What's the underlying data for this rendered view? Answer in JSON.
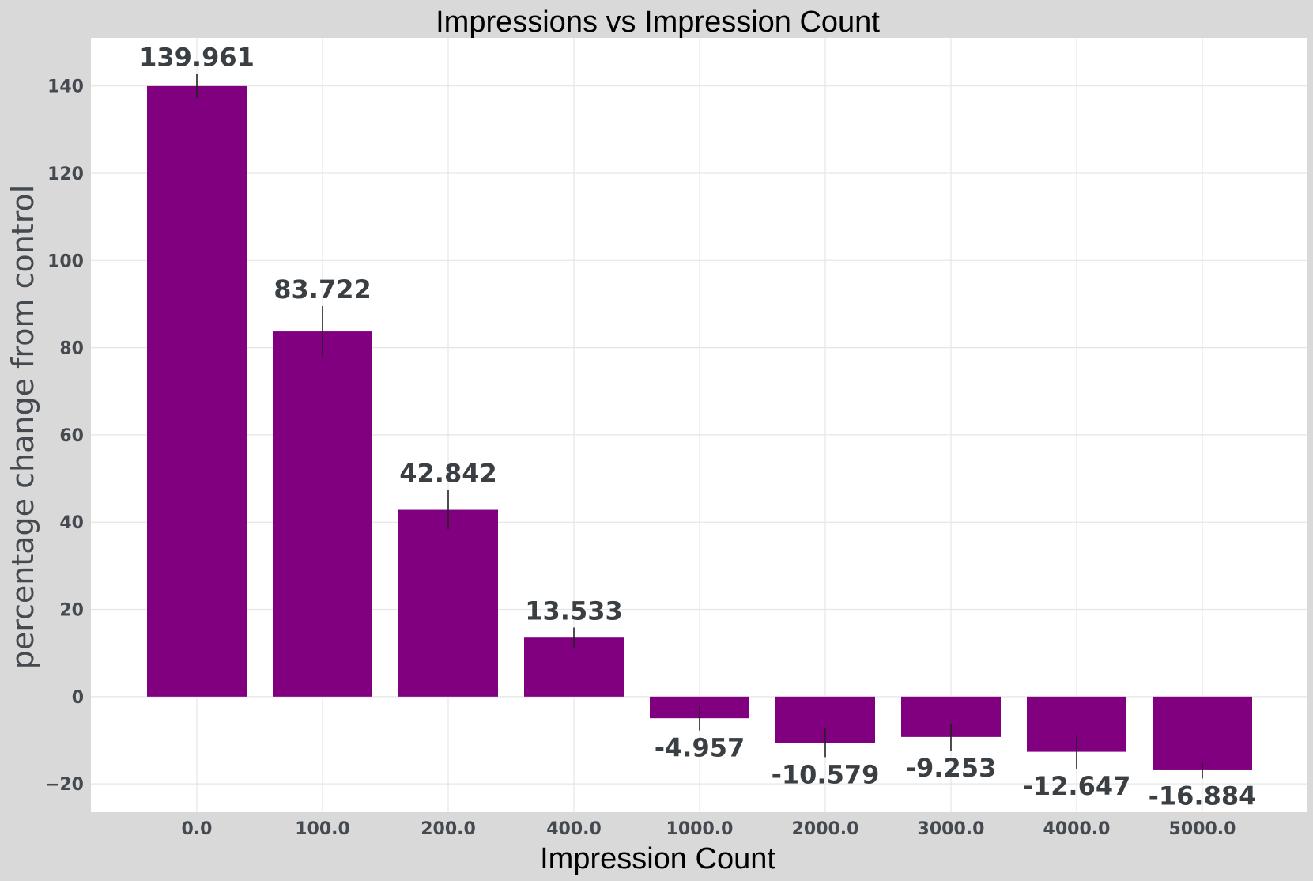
{
  "chart_data": {
    "type": "bar",
    "title": "Impressions vs Impression Count",
    "xlabel": "Impression Count",
    "ylabel": "percentage change from control",
    "categories": [
      "0.0",
      "100.0",
      "200.0",
      "400.0",
      "1000.0",
      "2000.0",
      "3000.0",
      "4000.0",
      "5000.0"
    ],
    "values": [
      139.961,
      83.722,
      42.842,
      13.533,
      -4.957,
      -10.579,
      -9.253,
      -12.647,
      -16.884
    ],
    "value_labels": [
      "139.961",
      "83.722",
      "42.842",
      "13.533",
      "-4.957",
      "-10.579",
      "-9.253",
      "-12.647",
      "-16.884"
    ],
    "error": [
      2.8,
      5.8,
      4.5,
      2.3,
      2.8,
      3.3,
      3.1,
      3.9,
      1.9
    ],
    "ylim": [
      -26.5,
      151
    ],
    "yticks": [
      -20,
      0,
      20,
      40,
      60,
      80,
      100,
      120,
      140
    ],
    "ytick_labels": [
      "−20",
      "0",
      "20",
      "40",
      "60",
      "80",
      "100",
      "120",
      "140"
    ],
    "bar_color": "#800080",
    "grid": true,
    "plot_background": "#ffffff",
    "figure_background": "#d9d9d9"
  }
}
